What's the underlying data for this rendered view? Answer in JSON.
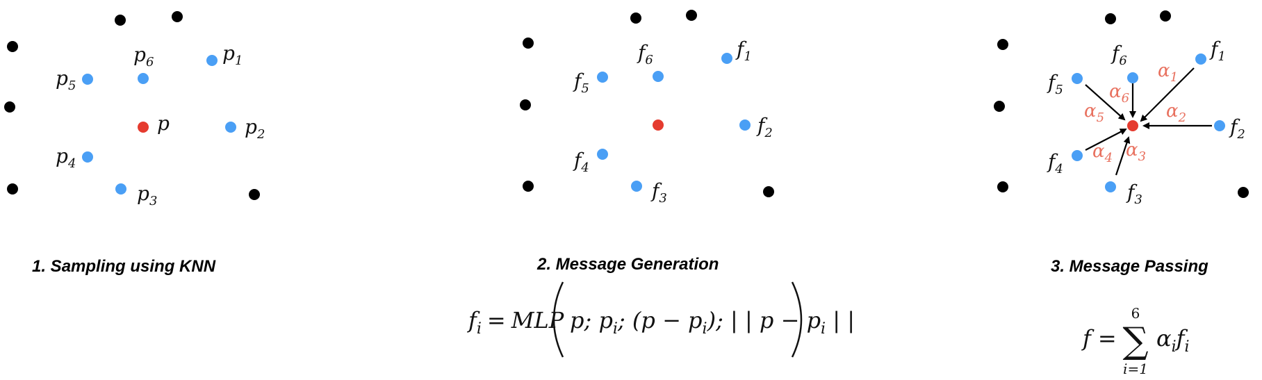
{
  "colors": {
    "background": "#ffffff",
    "black_point": "#000000",
    "neighbor_point": "#4a9ff5",
    "center_point": "#e53b2f",
    "weight_label": "#e8705e"
  },
  "panels": [
    {
      "caption": "1. Sampling using KNN",
      "center_label": "p",
      "neighbor_labels": [
        "p1",
        "p2",
        "p3",
        "p4",
        "p5",
        "p6"
      ]
    },
    {
      "caption": "2. Message Generation",
      "neighbor_labels": [
        "f1",
        "f2",
        "f3",
        "f4",
        "f5",
        "f6"
      ],
      "formula": {
        "lhs": "f",
        "lhs_sub": "i",
        "eq": "=",
        "mlp": "MLP",
        "args": [
          "p; p",
          "; (p − p",
          "); | | p − p",
          " | |"
        ],
        "arg_subs": [
          "i",
          "i",
          "i"
        ]
      }
    },
    {
      "caption": "3. Message Passing",
      "neighbor_labels": [
        "f1",
        "f2",
        "f3",
        "f4",
        "f5",
        "f6"
      ],
      "weight_labels": [
        "α1",
        "α2",
        "α3",
        "α4",
        "α5",
        "α6"
      ],
      "formula": {
        "lhs": "f",
        "eq": "=",
        "sum_upper": "6",
        "sum_lower": "i=1",
        "sum_symbol": "∑",
        "term": "α",
        "term_sub": "i",
        "term2": "f",
        "term2_sub": "i"
      }
    }
  ]
}
